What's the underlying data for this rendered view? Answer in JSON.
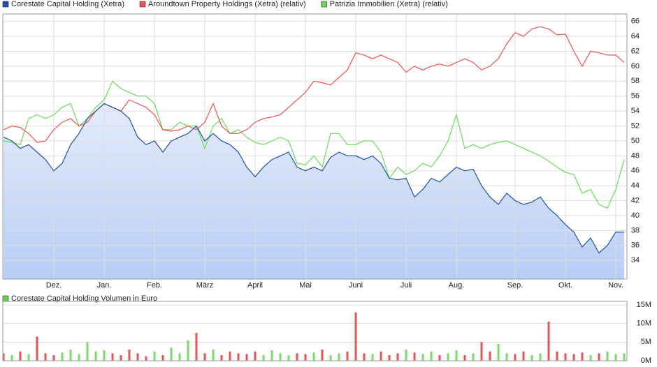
{
  "chart_data": [
    {
      "type": "line",
      "categories": [
        null,
        null,
        null,
        null,
        null,
        null,
        "Dez.",
        null,
        null,
        null,
        null,
        null,
        "Jan.",
        null,
        null,
        null,
        null,
        null,
        "Feb.",
        null,
        null,
        null,
        null,
        null,
        "März",
        null,
        null,
        null,
        null,
        null,
        "April",
        null,
        null,
        null,
        null,
        null,
        "Mai",
        null,
        null,
        null,
        null,
        null,
        "Juni",
        null,
        null,
        null,
        null,
        null,
        "Juli",
        null,
        null,
        null,
        null,
        null,
        "Aug.",
        null,
        null,
        null,
        null,
        null,
        null,
        "Sep.",
        null,
        null,
        null,
        null,
        null,
        "Okt.",
        null,
        null,
        null,
        null,
        null,
        "Nov.",
        null
      ],
      "series": [
        {
          "name": "Corestate Capital Holding (Xetra)",
          "color": "#1f4fa8",
          "area": true,
          "values": [
            50.5,
            50,
            49,
            49.5,
            48.5,
            47.5,
            46,
            47,
            49.5,
            51,
            53,
            54,
            55,
            54.5,
            54,
            53,
            50.5,
            49.5,
            50,
            48.5,
            50,
            50.5,
            51,
            52,
            50,
            51,
            50,
            49.5,
            48.5,
            46.5,
            45.2,
            46.5,
            47.5,
            48,
            48.5,
            46.5,
            46,
            46.5,
            46,
            47.8,
            48.5,
            48,
            48,
            47.5,
            48,
            47,
            45,
            44.8,
            45,
            42.5,
            43.5,
            45,
            44.5,
            45.5,
            46.5,
            46,
            46.2,
            44,
            42.5,
            41.5,
            43,
            42,
            41.5,
            41.8,
            42.5,
            41,
            40,
            38.8,
            37.8,
            35.8,
            37,
            35,
            36,
            37.8,
            37.8
          ]
        },
        {
          "name": "Aroundtown Property Holdings (Xetra) (relativ)",
          "color": "#f05050",
          "values": [
            51.5,
            52,
            51.8,
            51,
            49.8,
            50,
            51.5,
            52.5,
            53,
            52,
            52.5,
            54,
            55,
            54.5,
            54,
            55.5,
            55,
            54.5,
            53.5,
            51.5,
            51.3,
            51.5,
            52,
            51.5,
            52.5,
            55,
            52,
            51,
            51,
            51.5,
            52.5,
            53,
            53.2,
            53.5,
            54.5,
            55.5,
            56.5,
            58,
            57.8,
            57.5,
            58.5,
            59.5,
            61.8,
            61.5,
            61,
            61.5,
            61,
            60.5,
            59.2,
            60,
            59.5,
            60,
            60.3,
            60,
            60.5,
            61,
            60.5,
            59.5,
            60,
            61,
            63,
            64.5,
            64,
            65,
            65.3,
            65,
            64.2,
            64.3,
            62,
            60,
            62,
            61.8,
            61.5,
            61.5,
            60.5
          ]
        },
        {
          "name": "Patrizia Immobilien (Xetra) (relativ)",
          "color": "#66dd55",
          "values": [
            50,
            49.8,
            49.5,
            53,
            53.5,
            53,
            53.5,
            54.5,
            55,
            52,
            53,
            54.5,
            55.5,
            58,
            57,
            56.5,
            56,
            56,
            55,
            51.5,
            51.5,
            52.5,
            52,
            52,
            49,
            52,
            53,
            51,
            51.5,
            50.5,
            49.8,
            49.5,
            50,
            50.5,
            50,
            47,
            46.8,
            48,
            46.5,
            51,
            51,
            49.5,
            49.5,
            50,
            50,
            48.5,
            45,
            46.5,
            45.5,
            46,
            47,
            46.5,
            48,
            50,
            53.5,
            49,
            49.5,
            49,
            49.5,
            49.8,
            50,
            49.5,
            49,
            48.5,
            48,
            47.3,
            46.5,
            45.8,
            45.5,
            43,
            43.5,
            41.5,
            41,
            43.5,
            47.5
          ]
        }
      ],
      "ylim": [
        31.5,
        67
      ],
      "yticks": [
        34,
        36,
        38,
        40,
        42,
        44,
        46,
        48,
        50,
        52,
        54,
        56,
        58,
        60,
        62,
        64,
        66
      ],
      "grid": true,
      "legend": "top-left"
    },
    {
      "type": "bar",
      "series": [
        {
          "name": "Corestate Capital Holding Volumen in Euro",
          "color": "#66cc55",
          "values": [
            2,
            1.5,
            2.5,
            1.8,
            6.5,
            2,
            1.5,
            2.2,
            3,
            1.8,
            5,
            2.5,
            2.8,
            2,
            1.5,
            3,
            2,
            1.2,
            2.5,
            1.5,
            3.5,
            2,
            5.5,
            7.5,
            2,
            3,
            1.5,
            2.5,
            2,
            1.8,
            2.5,
            1.5,
            2.8,
            2,
            1.5,
            2,
            1.8,
            2.2,
            3,
            1.5,
            2,
            2.5,
            13,
            2,
            1.8,
            2.5,
            1.5,
            2,
            3,
            2.2,
            1.8,
            2.5,
            1.5,
            2,
            2.8,
            1.5,
            2,
            5,
            2.5,
            4.5,
            2,
            1.8,
            2.5,
            1.5,
            2,
            10.5,
            2.5,
            2,
            1.8,
            2.2,
            1.5,
            2,
            2.5,
            1.8,
            2
          ],
          "colors": [
            "#e05555",
            "#77dd66",
            "#e05555",
            "#77dd66",
            "#e05555",
            "#e05555",
            "#e05555",
            "#77dd66",
            "#77dd66",
            "#77dd66",
            "#77dd66",
            "#77dd66",
            "#77dd66",
            "#e05555",
            "#e05555",
            "#e05555",
            "#e05555",
            "#e05555",
            "#77dd66",
            "#e05555",
            "#77dd66",
            "#77dd66",
            "#77dd66",
            "#e05555",
            "#e05555",
            "#77dd66",
            "#e05555",
            "#e05555",
            "#e05555",
            "#e05555",
            "#e05555",
            "#77dd66",
            "#77dd66",
            "#77dd66",
            "#77dd66",
            "#e05555",
            "#e05555",
            "#77dd66",
            "#e05555",
            "#77dd66",
            "#77dd66",
            "#e05555",
            "#e05555",
            "#e05555",
            "#77dd66",
            "#e05555",
            "#e05555",
            "#e05555",
            "#77dd66",
            "#e05555",
            "#77dd66",
            "#77dd66",
            "#e05555",
            "#77dd66",
            "#77dd66",
            "#e05555",
            "#77dd66",
            "#e05555",
            "#e05555",
            "#77dd66",
            "#77dd66",
            "#e05555",
            "#e05555",
            "#77dd66",
            "#77dd66",
            "#e05555",
            "#e05555",
            "#e05555",
            "#e05555",
            "#e05555",
            "#77dd66",
            "#e05555",
            "#77dd66",
            "#77dd66",
            "#77dd66"
          ]
        }
      ],
      "ylim": [
        0,
        15
      ],
      "yticks": [
        {
          "value": 0,
          "label": "0M"
        },
        {
          "value": 5,
          "label": "5M"
        },
        {
          "value": 10,
          "label": "10M"
        },
        {
          "value": 15,
          "label": "15M"
        }
      ],
      "grid": true
    }
  ]
}
